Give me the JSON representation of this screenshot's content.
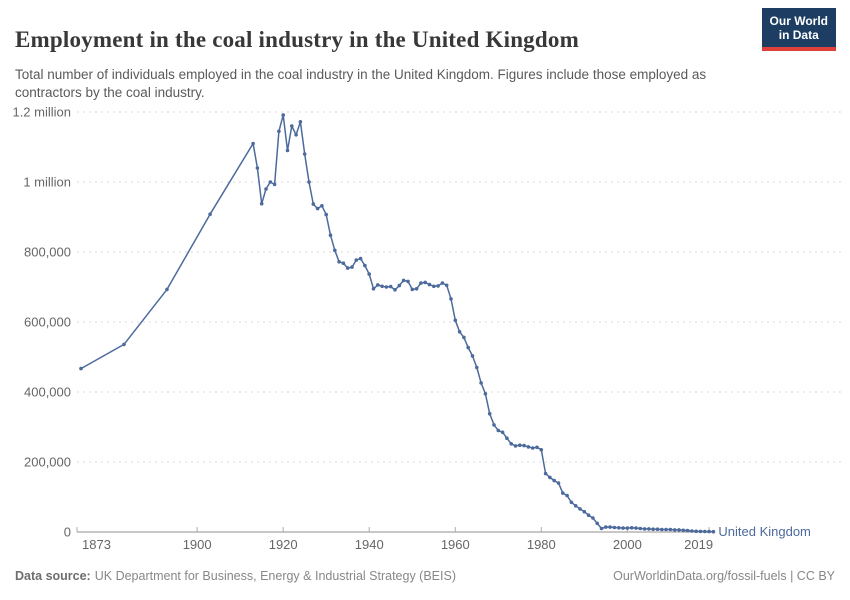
{
  "header": {
    "title": "Employment in the coal industry in the United Kingdom",
    "subtitle": "Total number of individuals employed in the coal industry in the United Kingdom. Figures include those employed as contractors by the coal industry.",
    "logo": {
      "line1": "Our World",
      "line2": "in Data",
      "bg_color": "#1d3d63",
      "bar_color": "#e0403a"
    }
  },
  "chart_data": {
    "type": "line",
    "title": "Employment in the coal industry in the United Kingdom",
    "xlabel": "",
    "ylabel": "",
    "grid": "dashed horizontal",
    "legend_position": "end-of-line label",
    "colors": {
      "series": "#4C6A9C",
      "gridline": "#d9d9d9",
      "axis_line": "#8f8f8f",
      "tick_mark": "#ababab",
      "tick_label": "#666666"
    },
    "x": {
      "range": [
        1873,
        2021
      ],
      "ticks": [
        1873,
        1900,
        1920,
        1940,
        1960,
        1980,
        2000,
        2019
      ]
    },
    "y": {
      "range": [
        0,
        1200000
      ],
      "ticks": [
        {
          "value": 0,
          "label": "0"
        },
        {
          "value": 200000,
          "label": "200,000"
        },
        {
          "value": 400000,
          "label": "400,000"
        },
        {
          "value": 600000,
          "label": "600,000"
        },
        {
          "value": 800000,
          "label": "800,000"
        },
        {
          "value": 1000000,
          "label": "1 million"
        },
        {
          "value": 1200000,
          "label": "1.2 million"
        }
      ]
    },
    "series": [
      {
        "name": "United Kingdom",
        "color": "#4C6A9C",
        "points": [
          [
            1873,
            467000
          ],
          [
            1883,
            536000
          ],
          [
            1893,
            693000
          ],
          [
            1903,
            908000
          ],
          [
            1913,
            1110000
          ],
          [
            1914,
            1040000
          ],
          [
            1915,
            938000
          ],
          [
            1916,
            980000
          ],
          [
            1917,
            1000000
          ],
          [
            1918,
            993000
          ],
          [
            1919,
            1145000
          ],
          [
            1920,
            1191000
          ],
          [
            1921,
            1090000
          ],
          [
            1922,
            1160000
          ],
          [
            1923,
            1135000
          ],
          [
            1924,
            1172000
          ],
          [
            1925,
            1080000
          ],
          [
            1926,
            1000000
          ],
          [
            1927,
            937000
          ],
          [
            1928,
            924000
          ],
          [
            1929,
            932000
          ],
          [
            1930,
            907000
          ],
          [
            1931,
            848000
          ],
          [
            1932,
            805000
          ],
          [
            1933,
            772000
          ],
          [
            1934,
            768000
          ],
          [
            1935,
            754000
          ],
          [
            1936,
            757000
          ],
          [
            1937,
            777000
          ],
          [
            1938,
            781000
          ],
          [
            1939,
            761000
          ],
          [
            1940,
            737000
          ],
          [
            1941,
            695000
          ],
          [
            1942,
            706000
          ],
          [
            1943,
            702000
          ],
          [
            1944,
            700000
          ],
          [
            1945,
            701000
          ],
          [
            1946,
            692000
          ],
          [
            1947,
            704000
          ],
          [
            1948,
            719000
          ],
          [
            1949,
            716000
          ],
          [
            1950,
            693000
          ],
          [
            1951,
            695000
          ],
          [
            1952,
            711000
          ],
          [
            1953,
            713000
          ],
          [
            1954,
            707000
          ],
          [
            1955,
            702000
          ],
          [
            1956,
            703000
          ],
          [
            1957,
            711000
          ],
          [
            1958,
            705000
          ],
          [
            1959,
            666000
          ],
          [
            1960,
            605000
          ],
          [
            1961,
            572000
          ],
          [
            1962,
            556000
          ],
          [
            1963,
            527000
          ],
          [
            1964,
            503000
          ],
          [
            1965,
            470000
          ],
          [
            1966,
            426000
          ],
          [
            1967,
            395000
          ],
          [
            1968,
            338000
          ],
          [
            1969,
            306000
          ],
          [
            1970,
            290000
          ],
          [
            1971,
            285000
          ],
          [
            1972,
            268000
          ],
          [
            1973,
            252000
          ],
          [
            1974,
            246000
          ],
          [
            1975,
            248000
          ],
          [
            1976,
            247000
          ],
          [
            1977,
            243000
          ],
          [
            1978,
            240000
          ],
          [
            1979,
            242000
          ],
          [
            1980,
            235000
          ],
          [
            1981,
            167000
          ],
          [
            1982,
            156000
          ],
          [
            1983,
            147000
          ],
          [
            1984,
            140000
          ],
          [
            1985,
            111000
          ],
          [
            1986,
            104000
          ],
          [
            1987,
            85000
          ],
          [
            1988,
            75000
          ],
          [
            1989,
            66000
          ],
          [
            1990,
            58000
          ],
          [
            1991,
            48000
          ],
          [
            1992,
            40000
          ],
          [
            1993,
            25000
          ],
          [
            1994,
            10000
          ],
          [
            1995,
            14000
          ],
          [
            1996,
            14000
          ],
          [
            1997,
            13000
          ],
          [
            1998,
            12000
          ],
          [
            1999,
            11000
          ],
          [
            2000,
            11000
          ],
          [
            2001,
            12000
          ],
          [
            2002,
            11000
          ],
          [
            2003,
            10000
          ],
          [
            2004,
            9000
          ],
          [
            2005,
            9000
          ],
          [
            2006,
            8000
          ],
          [
            2007,
            8000
          ],
          [
            2008,
            7000
          ],
          [
            2009,
            7000
          ],
          [
            2010,
            7000
          ],
          [
            2011,
            6000
          ],
          [
            2012,
            6000
          ],
          [
            2013,
            5000
          ],
          [
            2014,
            4000
          ],
          [
            2015,
            3000
          ],
          [
            2016,
            2000
          ],
          [
            2017,
            1700
          ],
          [
            2018,
            1300
          ],
          [
            2019,
            1000
          ],
          [
            2020,
            800
          ]
        ]
      }
    ]
  },
  "footer": {
    "datasource_label": "Data source:",
    "datasource": "UK Department for Business, Energy & Industrial Strategy (BEIS)",
    "url": "OurWorldinData.org/fossil-fuels",
    "separator": "|",
    "license": "CC BY"
  }
}
